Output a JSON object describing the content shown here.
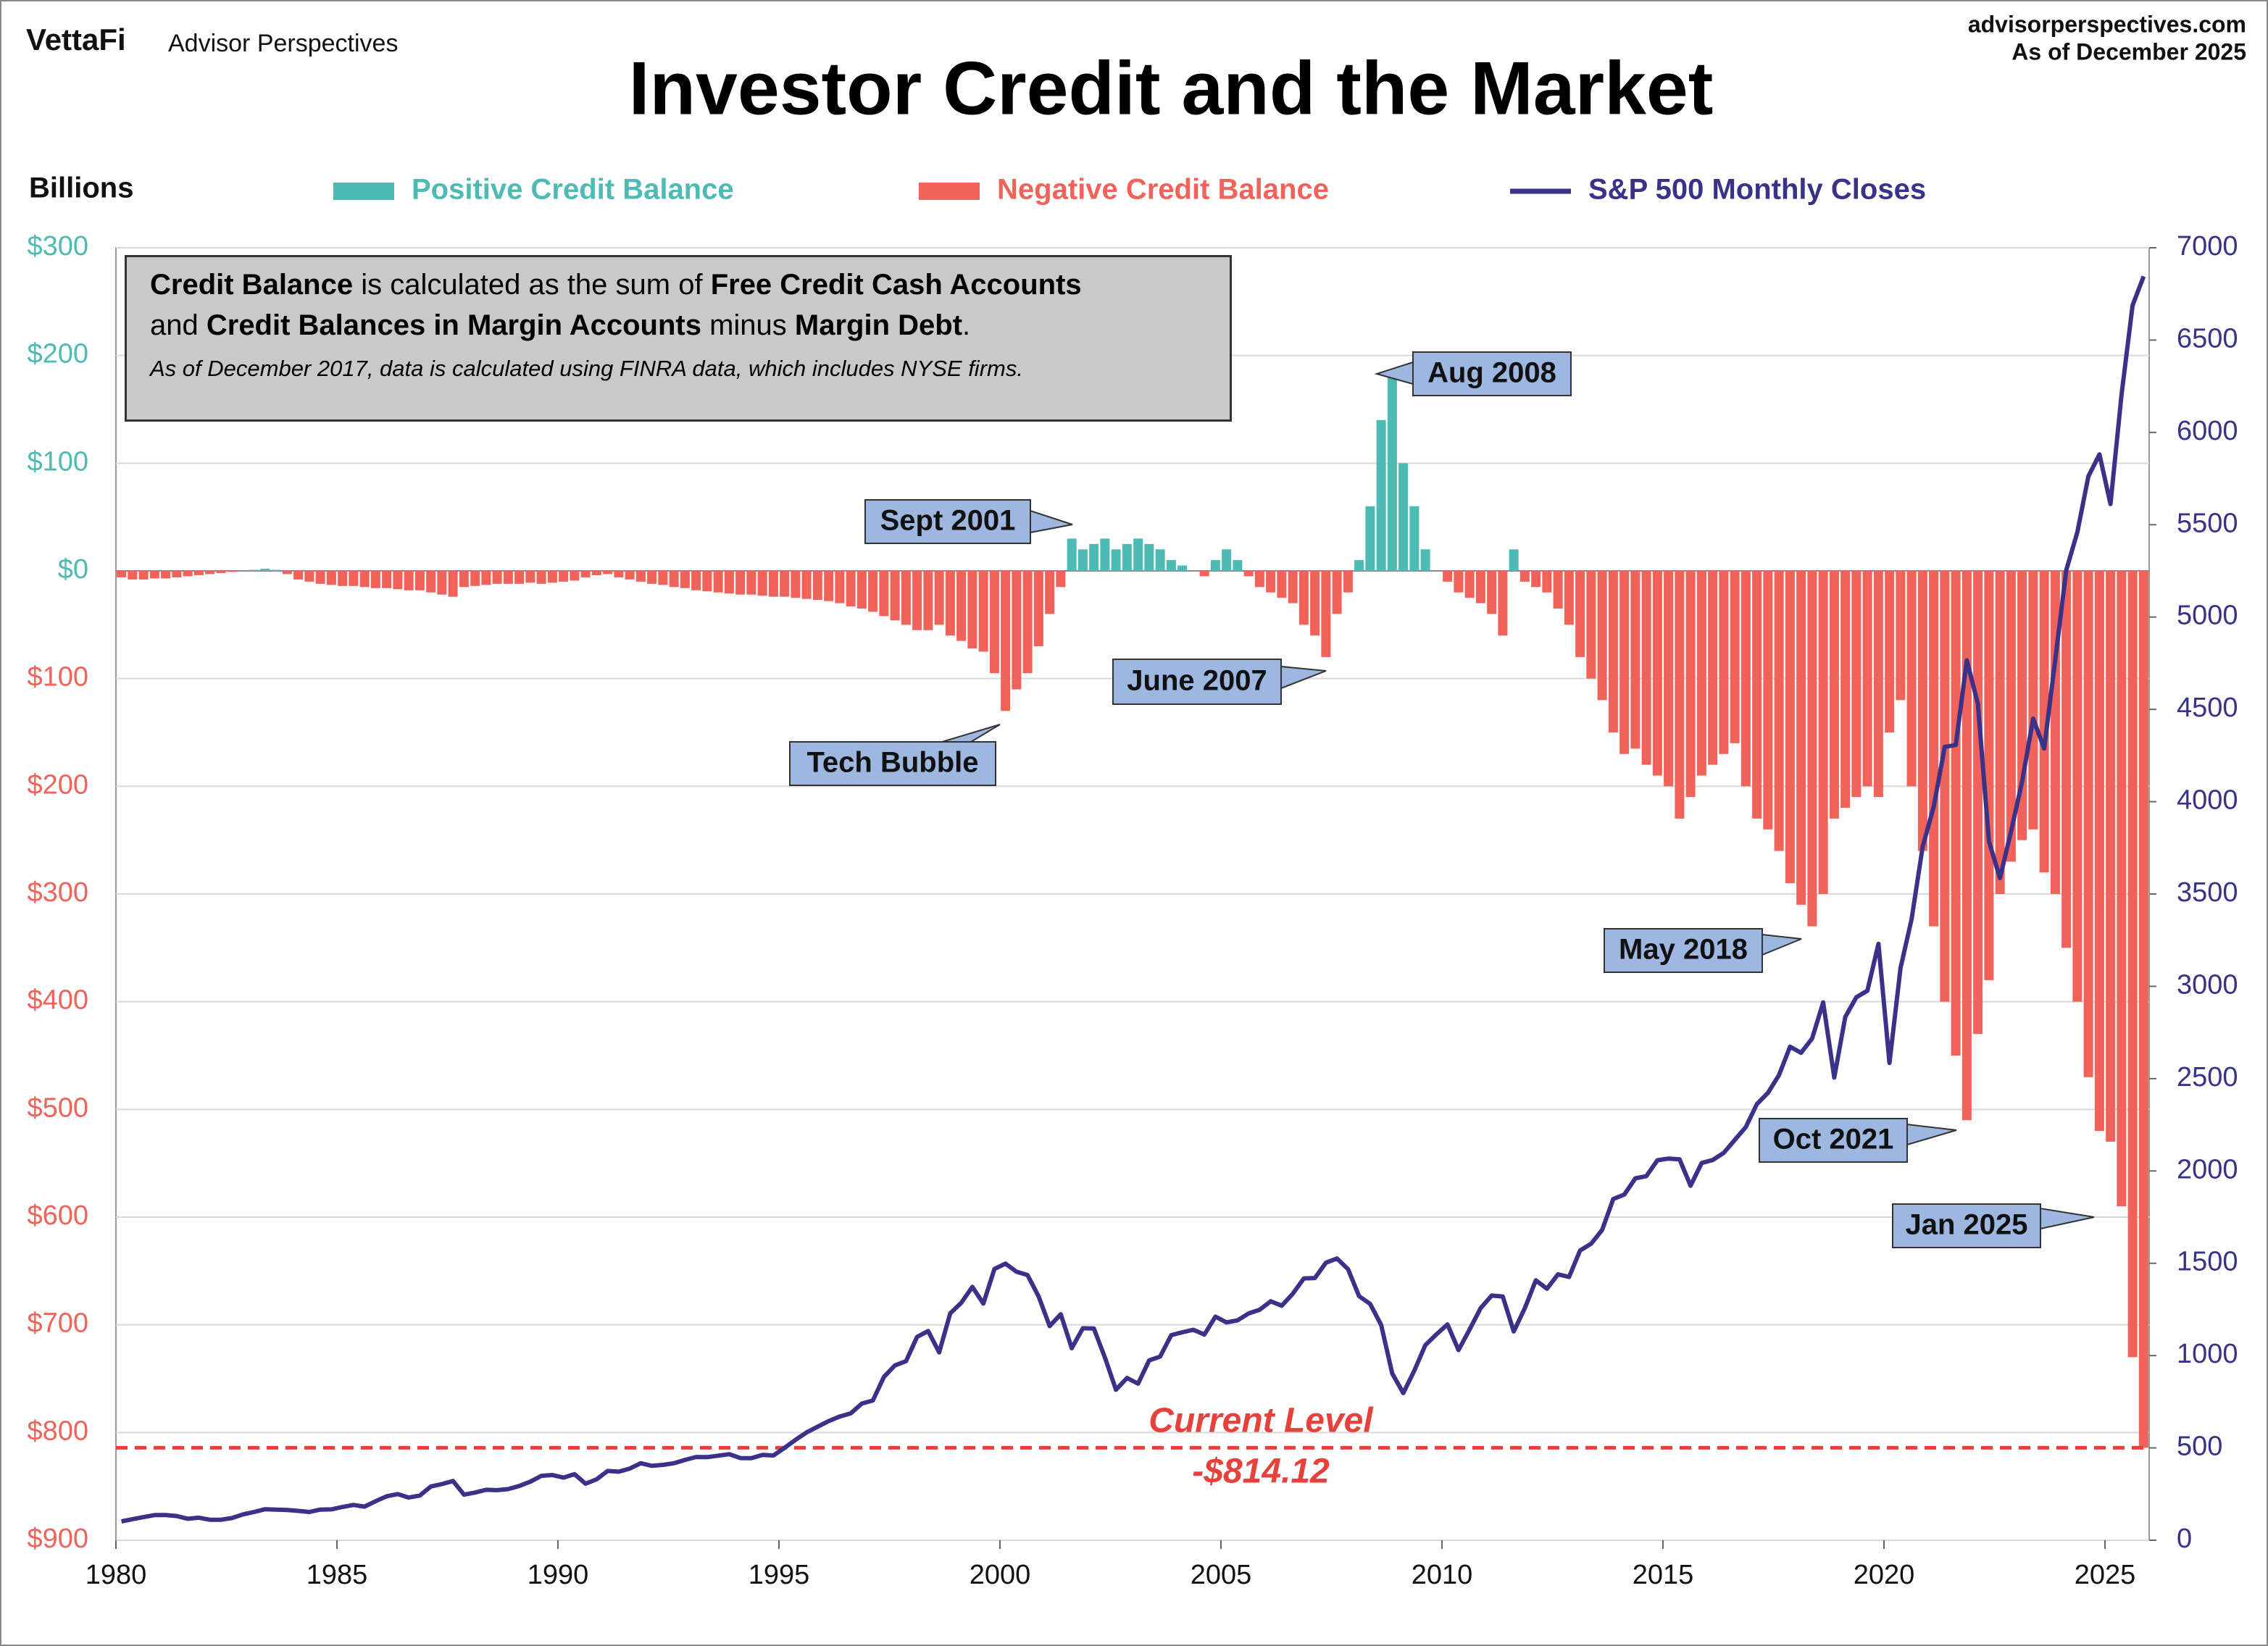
{
  "header": {
    "brand": "VettaFi",
    "publisher": "Advisor Perspectives",
    "site": "advisorperspectives.com",
    "as_of": "As of December 2025"
  },
  "chart_data": {
    "type": "combo",
    "title": "Investor Credit and the Market",
    "y_label": "Billions",
    "note": {
      "lines": [
        [
          {
            "text": "Credit Balance",
            "bold": true
          },
          {
            "text": " is calculated as the sum of ",
            "bold": false
          },
          {
            "text": "Free Credit Cash Accounts",
            "bold": true
          }
        ],
        [
          {
            "text": "and ",
            "bold": false
          },
          {
            "text": "Credit Balances in Margin Accounts",
            "bold": true
          },
          {
            "text": " minus ",
            "bold": false
          },
          {
            "text": "Margin Debt",
            "bold": true
          },
          {
            "text": ".",
            "bold": false
          }
        ]
      ],
      "footnote": "As of December 2017, data is calculated using FINRA data, which includes NYSE firms."
    },
    "annotations": [
      "Sept 2001",
      "Aug 2008",
      "Tech Bubble",
      "June 2007",
      "May 2018",
      "Oct 2021",
      "Jan 2025"
    ],
    "current_level": {
      "value": -814.12,
      "label": "Current Level",
      "value_label": "-$814.12",
      "color": "#e8403a"
    },
    "xlim": [
      1980,
      2026
    ],
    "xticks": [
      1980,
      1985,
      1990,
      1995,
      2000,
      2005,
      2010,
      2015,
      2020,
      2025
    ],
    "ylim": [
      -900,
      300
    ],
    "yticks": [
      {
        "value": 300,
        "label": "$300"
      },
      {
        "value": 200,
        "label": "$200"
      },
      {
        "value": 100,
        "label": "$100"
      },
      {
        "value": 0,
        "label": "$0"
      },
      {
        "value": -100,
        "label": "$100"
      },
      {
        "value": -200,
        "label": "$200"
      },
      {
        "value": -300,
        "label": "$300"
      },
      {
        "value": -400,
        "label": "$400"
      },
      {
        "value": -500,
        "label": "$500"
      },
      {
        "value": -600,
        "label": "$600"
      },
      {
        "value": -700,
        "label": "$700"
      },
      {
        "value": -800,
        "label": "$800"
      },
      {
        "value": -900,
        "label": "$900"
      }
    ],
    "y2lim": [
      0,
      7000
    ],
    "y2ticks": [
      0,
      500,
      1000,
      1500,
      2000,
      2500,
      3000,
      3500,
      4000,
      4500,
      5000,
      5500,
      6000,
      6500,
      7000
    ],
    "grid": true,
    "x": [
      1980.125,
      1980.375,
      1980.625,
      1980.875,
      1981.125,
      1981.375,
      1981.625,
      1981.875,
      1982.125,
      1982.375,
      1982.625,
      1982.875,
      1983.125,
      1983.375,
      1983.625,
      1983.875,
      1984.125,
      1984.375,
      1984.625,
      1984.875,
      1985.125,
      1985.375,
      1985.625,
      1985.875,
      1986.125,
      1986.375,
      1986.625,
      1986.875,
      1987.125,
      1987.375,
      1987.625,
      1987.875,
      1988.125,
      1988.375,
      1988.625,
      1988.875,
      1989.125,
      1989.375,
      1989.625,
      1989.875,
      1990.125,
      1990.375,
      1990.625,
      1990.875,
      1991.125,
      1991.375,
      1991.625,
      1991.875,
      1992.125,
      1992.375,
      1992.625,
      1992.875,
      1993.125,
      1993.375,
      1993.625,
      1993.875,
      1994.125,
      1994.375,
      1994.625,
      1994.875,
      1995.125,
      1995.375,
      1995.625,
      1995.875,
      1996.125,
      1996.375,
      1996.625,
      1996.875,
      1997.125,
      1997.375,
      1997.625,
      1997.875,
      1998.125,
      1998.375,
      1998.625,
      1998.875,
      1999.125,
      1999.375,
      1999.625,
      1999.875,
      2000.125,
      2000.375,
      2000.625,
      2000.875,
      2001.125,
      2001.375,
      2001.625,
      2001.875,
      2002.125,
      2002.375,
      2002.625,
      2002.875,
      2003.125,
      2003.375,
      2003.625,
      2003.875,
      2004.125,
      2004.375,
      2004.625,
      2004.875,
      2005.125,
      2005.375,
      2005.625,
      2005.875,
      2006.125,
      2006.375,
      2006.625,
      2006.875,
      2007.125,
      2007.375,
      2007.625,
      2007.875,
      2008.125,
      2008.375,
      2008.625,
      2008.875,
      2009.125,
      2009.375,
      2009.625,
      2009.875,
      2010.125,
      2010.375,
      2010.625,
      2010.875,
      2011.125,
      2011.375,
      2011.625,
      2011.875,
      2012.125,
      2012.375,
      2012.625,
      2012.875,
      2013.125,
      2013.375,
      2013.625,
      2013.875,
      2014.125,
      2014.375,
      2014.625,
      2014.875,
      2015.125,
      2015.375,
      2015.625,
      2015.875,
      2016.125,
      2016.375,
      2016.625,
      2016.875,
      2017.125,
      2017.375,
      2017.625,
      2017.875,
      2018.125,
      2018.375,
      2018.625,
      2018.875,
      2019.125,
      2019.375,
      2019.625,
      2019.875,
      2020.125,
      2020.375,
      2020.625,
      2020.875,
      2021.125,
      2021.375,
      2021.625,
      2021.875,
      2022.125,
      2022.375,
      2022.625,
      2022.875,
      2023.125,
      2023.375,
      2023.625,
      2023.875,
      2024.125,
      2024.375,
      2024.625,
      2024.875,
      2025.125,
      2025.375,
      2025.625,
      2025.875
    ],
    "series": [
      {
        "name": "Positive Credit Balance",
        "type": "bar",
        "color": "#4dbab3",
        "values": [
          null,
          null,
          null,
          null,
          null,
          null,
          null,
          null,
          null,
          null,
          null,
          null,
          1,
          2,
          1,
          null,
          null,
          null,
          null,
          null,
          null,
          null,
          null,
          null,
          null,
          null,
          null,
          null,
          null,
          null,
          null,
          null,
          null,
          null,
          null,
          null,
          null,
          null,
          null,
          null,
          null,
          null,
          null,
          null,
          null,
          null,
          null,
          null,
          null,
          null,
          null,
          null,
          null,
          null,
          null,
          null,
          null,
          null,
          null,
          null,
          null,
          null,
          null,
          null,
          null,
          null,
          null,
          null,
          null,
          null,
          null,
          null,
          null,
          null,
          null,
          null,
          null,
          null,
          null,
          null,
          null,
          null,
          null,
          null,
          null,
          null,
          30,
          20,
          25,
          30,
          20,
          25,
          30,
          25,
          20,
          10,
          5,
          null,
          null,
          10,
          20,
          10,
          null,
          null,
          null,
          null,
          null,
          null,
          null,
          null,
          null,
          null,
          10,
          60,
          140,
          180,
          100,
          60,
          20,
          null,
          null,
          null,
          null,
          null,
          null,
          null,
          20,
          null,
          null,
          null,
          null,
          null,
          null,
          null,
          null,
          null,
          null,
          null,
          null,
          null,
          null,
          null,
          null,
          null,
          null,
          null,
          null,
          null,
          null,
          null,
          null,
          null,
          null,
          null,
          null,
          null,
          null,
          null,
          null,
          null,
          null,
          null,
          null,
          null,
          null,
          null,
          null,
          null,
          null,
          null,
          null,
          null,
          null,
          null,
          null,
          null,
          null,
          null,
          null,
          null,
          null,
          null,
          null,
          null
        ]
      },
      {
        "name": "Negative Credit Balance",
        "type": "bar",
        "color": "#f0625a",
        "values": [
          -6,
          -8,
          -8,
          -7,
          -7,
          -6,
          -5,
          -4,
          -3,
          -2,
          -1,
          0,
          null,
          null,
          null,
          -3,
          -8,
          -10,
          -12,
          -13,
          -14,
          -14,
          -15,
          -16,
          -16,
          -17,
          -18,
          -18,
          -20,
          -22,
          -24,
          -15,
          -14,
          -13,
          -12,
          -12,
          -12,
          -11,
          -12,
          -11,
          -10,
          -9,
          -6,
          -4,
          -3,
          -6,
          -8,
          -10,
          -12,
          -13,
          -15,
          -16,
          -18,
          -19,
          -20,
          -21,
          -22,
          -22,
          -23,
          -24,
          -24,
          -25,
          -26,
          -27,
          -28,
          -30,
          -33,
          -35,
          -38,
          -42,
          -46,
          -50,
          -55,
          -55,
          -50,
          -60,
          -65,
          -72,
          -75,
          -95,
          -130,
          -110,
          -95,
          -70,
          -40,
          -15,
          null,
          null,
          null,
          null,
          null,
          null,
          null,
          null,
          null,
          null,
          null,
          0,
          -5,
          null,
          null,
          null,
          -5,
          -15,
          -20,
          -25,
          -30,
          -50,
          -60,
          -80,
          -40,
          -20,
          null,
          null,
          null,
          null,
          null,
          null,
          null,
          0,
          -10,
          -20,
          -25,
          -30,
          -40,
          -60,
          null,
          -10,
          -15,
          -20,
          -35,
          -50,
          -80,
          -100,
          -120,
          -150,
          -170,
          -165,
          -180,
          -190,
          -200,
          -230,
          -210,
          -190,
          -180,
          -170,
          -160,
          -200,
          -230,
          -240,
          -260,
          -290,
          -310,
          -330,
          -300,
          -230,
          -220,
          -210,
          -200,
          -210,
          -150,
          -120,
          -200,
          -260,
          -330,
          -400,
          -450,
          -510,
          -430,
          -380,
          -300,
          -270,
          -250,
          -240,
          -280,
          -300,
          -350,
          -400,
          -470,
          -520,
          -530,
          -590,
          -730,
          -814.12
        ]
      },
      {
        "name": "S&P 500 Monthly Closes",
        "type": "line",
        "axis": "y2",
        "color": "#3a3288",
        "values": [
          102,
          114,
          125,
          136,
          136,
          131,
          116,
          122,
          111,
          111,
          120,
          140,
          153,
          168,
          166,
          164,
          159,
          153,
          166,
          167,
          180,
          191,
          182,
          211,
          238,
          250,
          231,
          242,
          291,
          304,
          321,
          247,
          258,
          273,
          271,
          277,
          294,
          317,
          349,
          353,
          339,
          358,
          306,
          330,
          375,
          371,
          388,
          417,
          403,
          408,
          417,
          435,
          451,
          450,
          458,
          466,
          445,
          444,
          462,
          459,
          500,
          544,
          584,
          615,
          645,
          670,
          687,
          740,
          757,
          885,
          947,
          970,
          1101,
          1133,
          1017,
          1229,
          1286,
          1372,
          1282,
          1469,
          1498,
          1454,
          1436,
          1320,
          1160,
          1224,
          1040,
          1148,
          1147,
          989,
          815,
          879,
          848,
          974,
          995,
          1111,
          1126,
          1140,
          1114,
          1211,
          1180,
          1191,
          1228,
          1248,
          1294,
          1270,
          1335,
          1418,
          1420,
          1503,
          1526,
          1468,
          1322,
          1280,
          1166,
          903,
          797,
          919,
          1057,
          1115,
          1169,
          1030,
          1141,
          1257,
          1325,
          1320,
          1131,
          1257,
          1408,
          1362,
          1440,
          1426,
          1569,
          1606,
          1681,
          1848,
          1872,
          1960,
          1972,
          2058,
          2067,
          2063,
          1920,
          2043,
          2059,
          2098,
          2168,
          2238,
          2362,
          2423,
          2519,
          2673,
          2640,
          2718,
          2913,
          2506,
          2834,
          2941,
          2976,
          3230,
          2585,
          3100,
          3363,
          3756,
          3972,
          4297,
          4307,
          4766,
          4530,
          3785,
          3586,
          3839,
          4109,
          4450,
          4288,
          4769,
          5254,
          5460,
          5762,
          5881,
          5612,
          6205,
          6688,
          6845
        ]
      }
    ]
  }
}
